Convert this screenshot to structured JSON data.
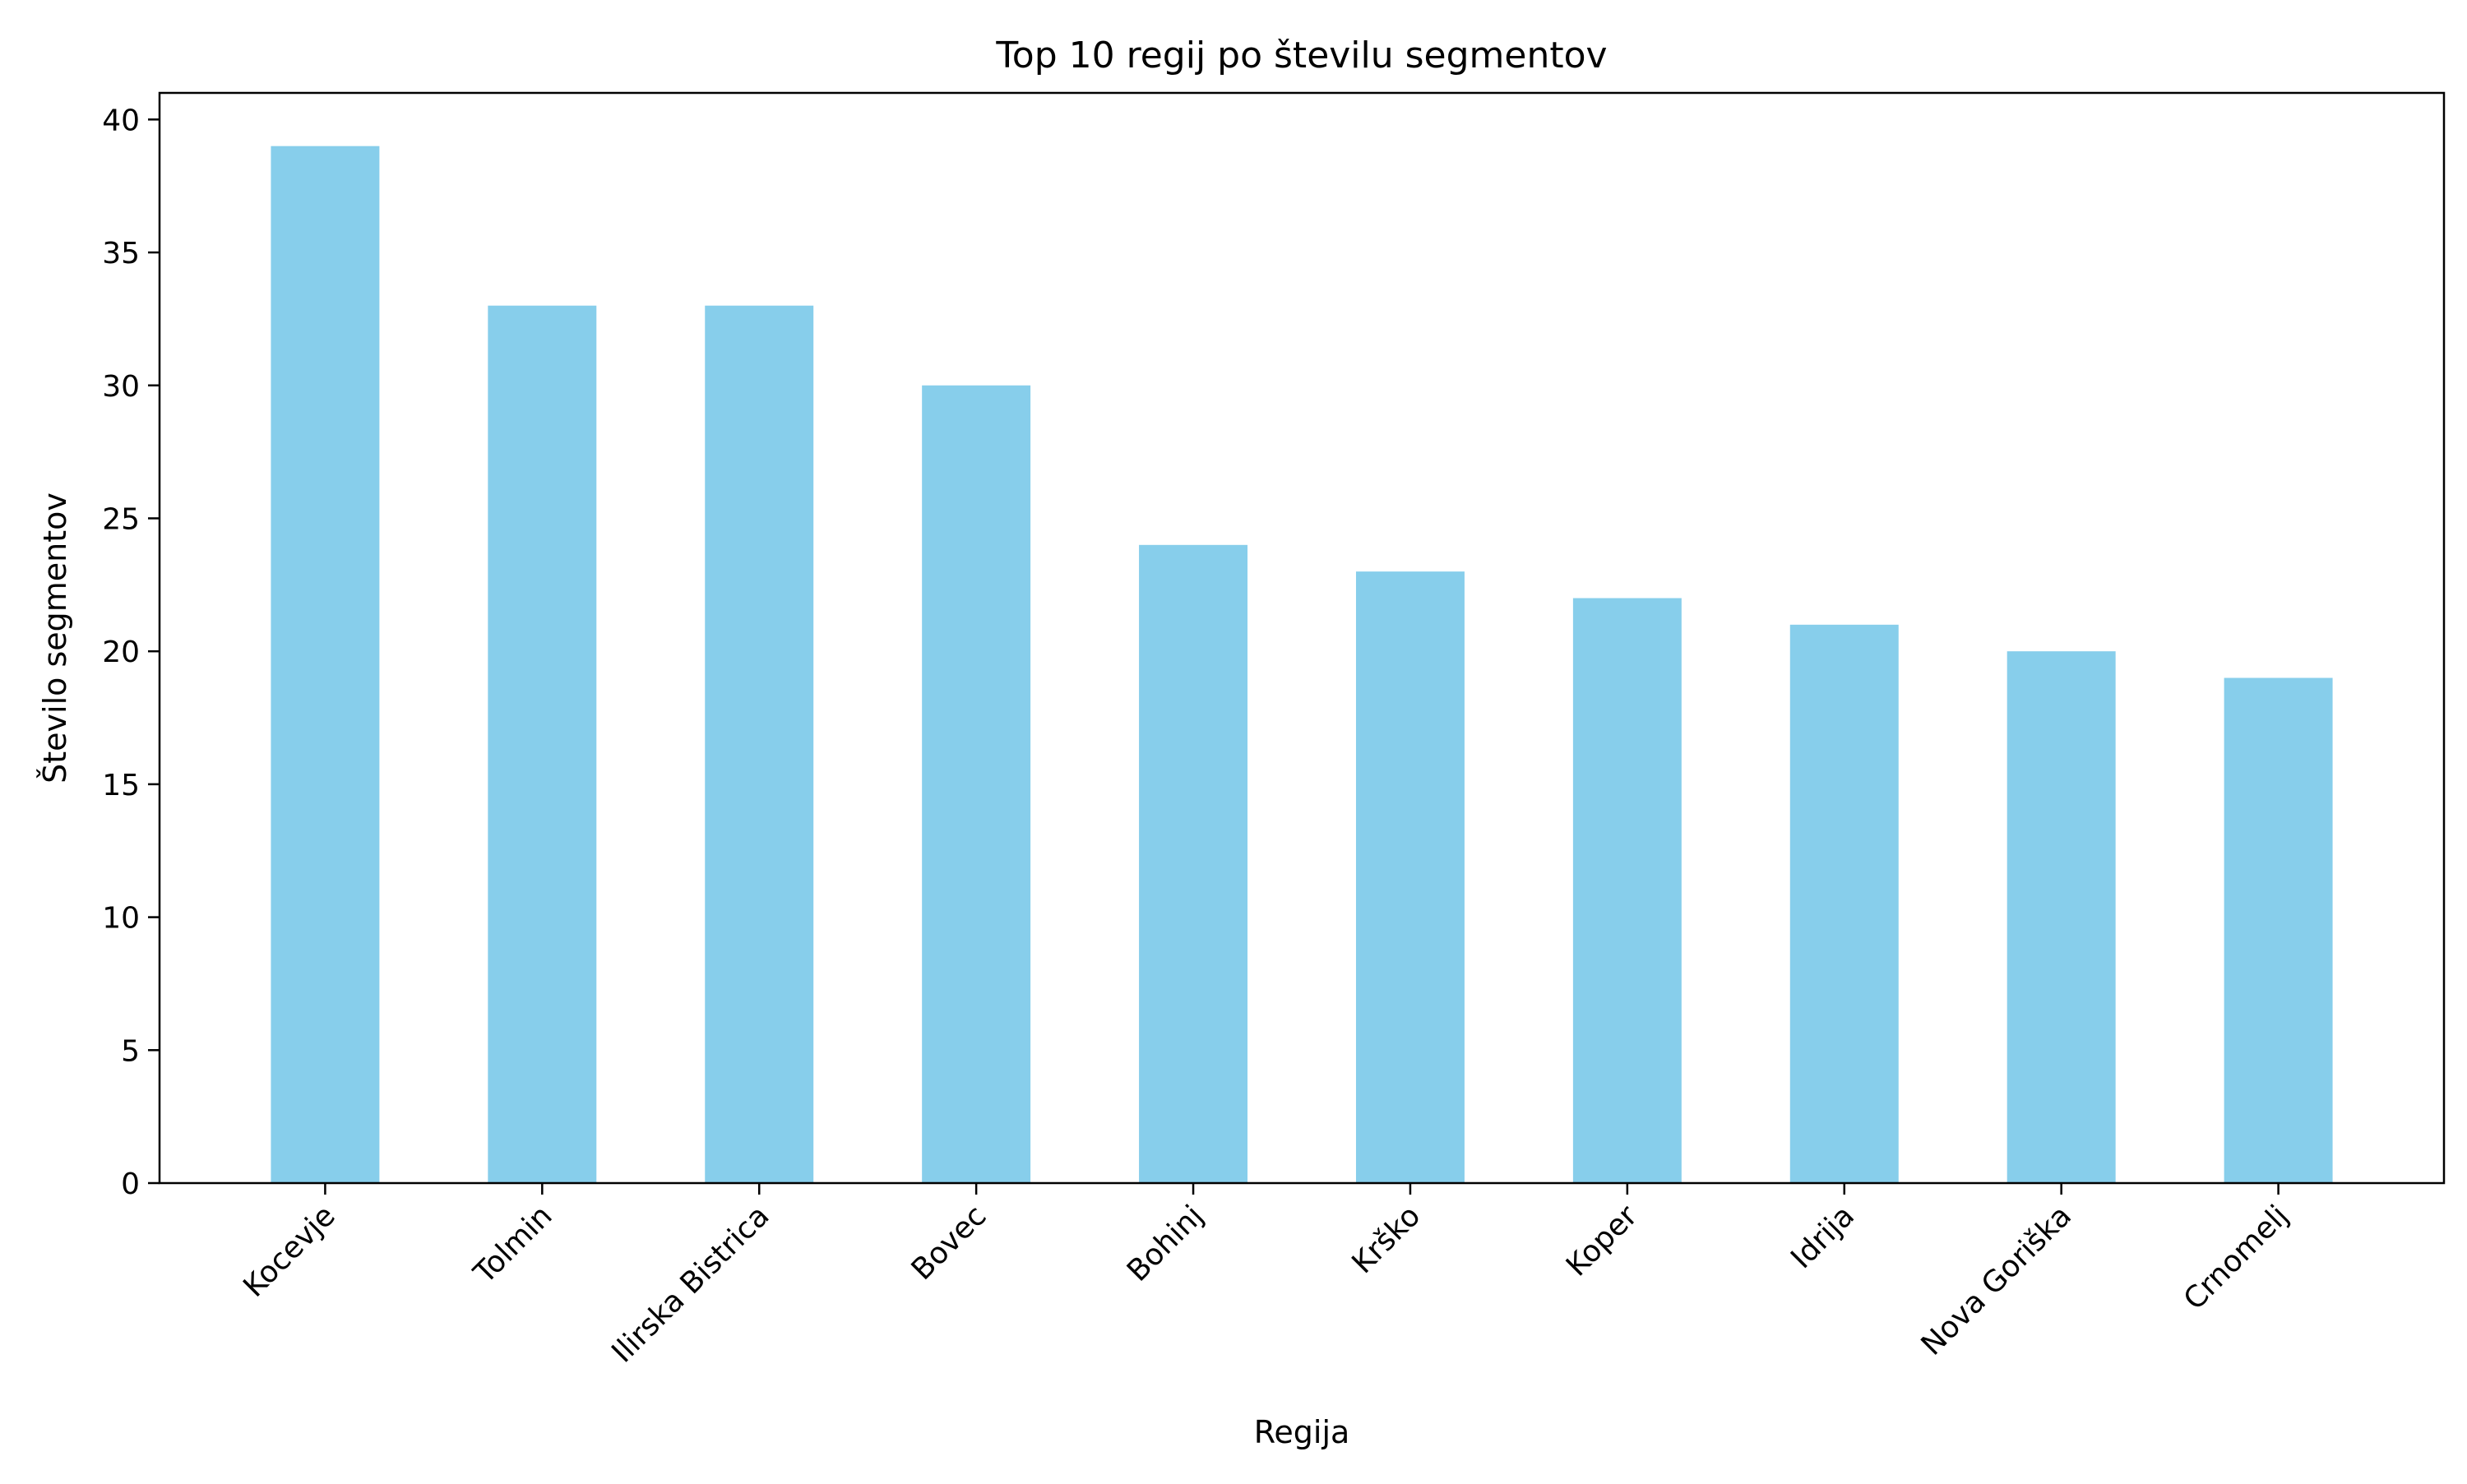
{
  "chart_data": {
    "type": "bar",
    "title": "Top 10 regij po številu segmentov",
    "xlabel": "Regija",
    "ylabel": "Število segmentov",
    "categories": [
      "Kocevje",
      "Tolmin",
      "Ilirska Bistrica",
      "Bovec",
      "Bohinj",
      "Krško",
      "Koper",
      "Idrija",
      "Nova Goriška",
      "Crnomelj"
    ],
    "values": [
      39,
      33,
      33,
      30,
      24,
      23,
      22,
      21,
      20,
      19
    ],
    "ylim": [
      0,
      41
    ],
    "yticks": [
      0,
      5,
      10,
      15,
      20,
      25,
      30,
      35,
      40
    ],
    "grid": false,
    "bar_color": "#87CEEB"
  }
}
